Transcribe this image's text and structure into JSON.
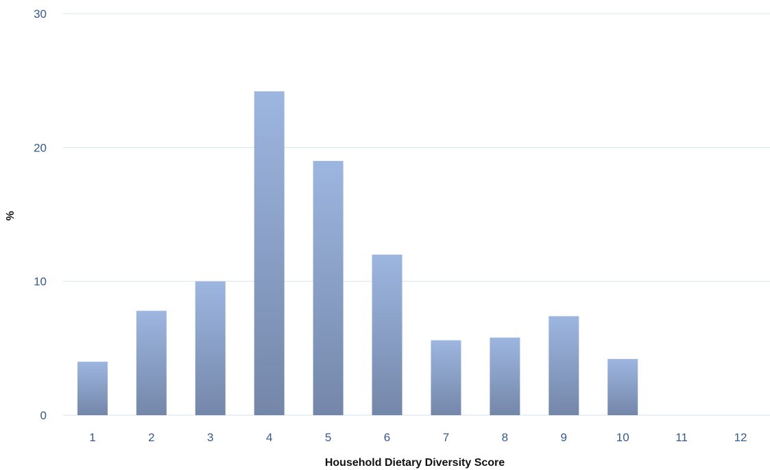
{
  "chart_data": {
    "type": "bar",
    "title": "",
    "xlabel": "Household Dietary Diversity Score",
    "ylabel": "%",
    "categories": [
      "1",
      "2",
      "3",
      "4",
      "5",
      "6",
      "7",
      "8",
      "9",
      "10",
      "11",
      "12"
    ],
    "values": [
      4.0,
      7.8,
      10.0,
      24.2,
      19.0,
      12.0,
      5.6,
      5.8,
      7.4,
      4.2,
      0,
      0
    ],
    "ylim": [
      0,
      30
    ],
    "yticks": [
      "0",
      "10",
      "20",
      "30"
    ],
    "grid": true,
    "legend": "none",
    "colors": {
      "bar_top": "#9db6e0",
      "bar_bottom": "#7487a9",
      "grid": "#d6e3ee",
      "tick_text": "#35598f",
      "axis_title": "#111111"
    }
  }
}
